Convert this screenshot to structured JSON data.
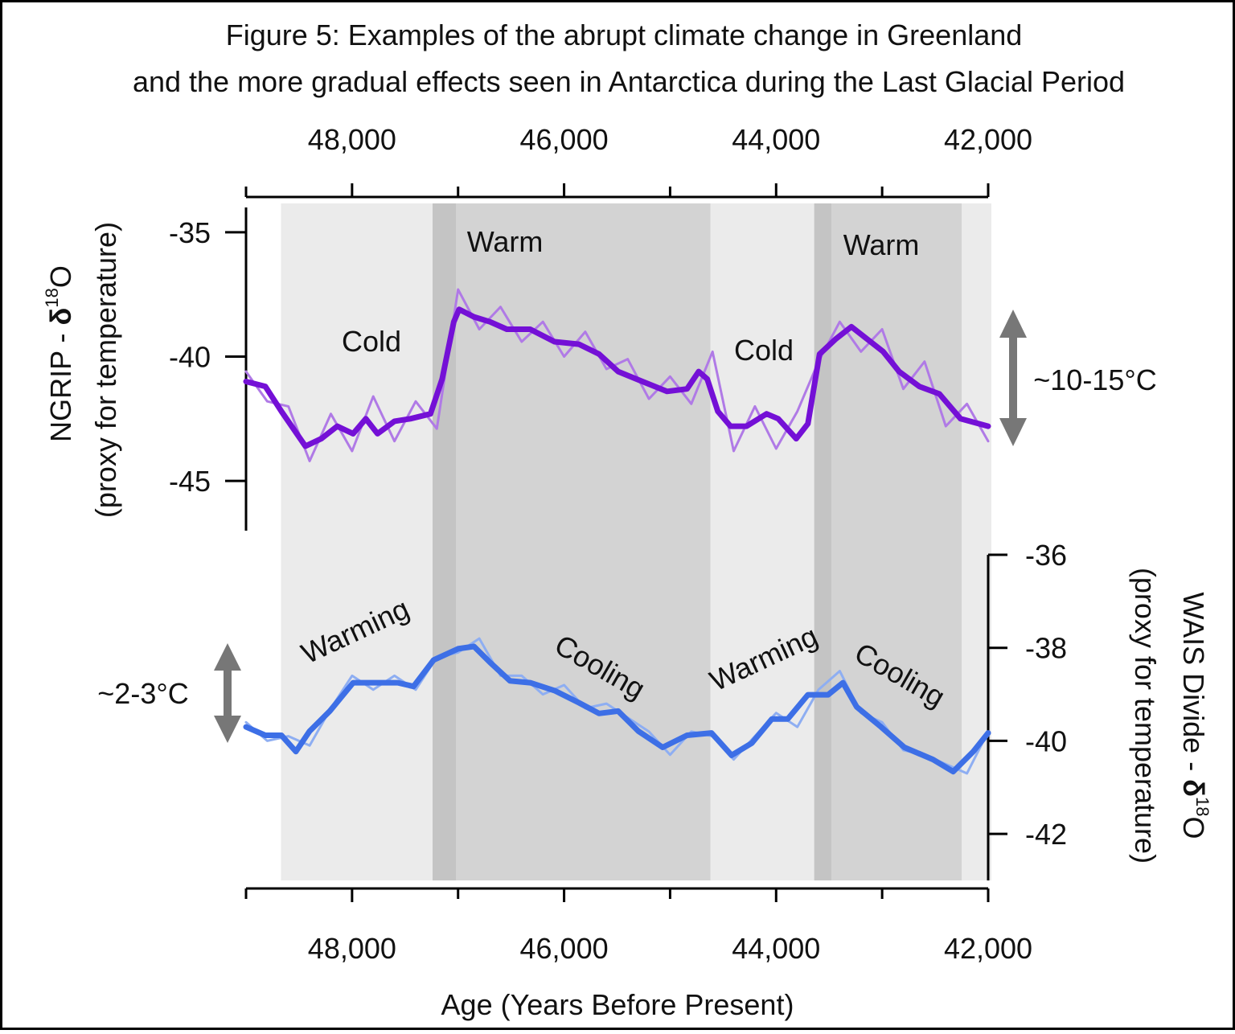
{
  "chart_data": {
    "type": "line",
    "title": [
      "Figure 5: Examples of the abrupt climate change in Greenland",
      "and the more gradual effects seen in Antarctica during the Last Glacial Period"
    ],
    "x_label": "Age (Years Before Present)",
    "xlim": [
      49000,
      42000
    ],
    "xticks": [
      {
        "value": 48000,
        "label": "48,000"
      },
      {
        "value": 46000,
        "label": "46,000"
      },
      {
        "value": 44000,
        "label": "44,000"
      },
      {
        "value": 42000,
        "label": "42,000"
      }
    ],
    "xticks_minor": [
      49000,
      47000,
      45000,
      43000
    ],
    "y_label": {
      "parts": [
        "NGRIP - ",
        "δ",
        "18",
        "O"
      ],
      "note": "(proxy for temperature)"
    },
    "ylim": [
      -47,
      -34
    ],
    "yticks": [
      -45,
      -40,
      -35
    ],
    "y2_label": {
      "parts": [
        "WAIS Divide - ",
        "δ",
        "18",
        "O"
      ],
      "note": "(proxy for temperature)"
    },
    "y2lim": [
      -43,
      -36
    ],
    "y2ticks": [
      -42,
      -40,
      -38,
      -36
    ],
    "shading": [
      {
        "start": 48670,
        "end": 41970,
        "color": "#ebebeb"
      },
      {
        "start": 47240,
        "end": 44620,
        "color": "#d3d3d3"
      },
      {
        "start": 47240,
        "end": 47020,
        "color": "#c4c4c4"
      },
      {
        "start": 43640,
        "end": 42250,
        "color": "#d3d3d3"
      },
      {
        "start": 43640,
        "end": 43480,
        "color": "#c4c4c4"
      }
    ],
    "series": [
      {
        "color": "#b07ae6",
        "width": 3,
        "x": [
          49000,
          48800,
          48600,
          48400,
          48200,
          48000,
          47800,
          47600,
          47400,
          47200,
          47000,
          46800,
          46600,
          46400,
          46200,
          46000,
          45800,
          45600,
          45400,
          45200,
          45000,
          44800,
          44600,
          44400,
          44200,
          44000,
          43800,
          43600,
          43400,
          43200,
          43000,
          42800,
          42600,
          42400,
          42200,
          42000
        ],
        "values": [
          -40.6,
          -41.8,
          -42.0,
          -44.2,
          -42.3,
          -43.8,
          -41.6,
          -43.4,
          -41.8,
          -42.9,
          -37.3,
          -38.9,
          -38.0,
          -39.4,
          -38.6,
          -40.0,
          -39.0,
          -40.5,
          -40.1,
          -41.7,
          -40.8,
          -41.9,
          -39.8,
          -43.8,
          -42.0,
          -43.7,
          -42.2,
          -40.2,
          -38.6,
          -39.8,
          -38.9,
          -41.3,
          -40.2,
          -42.8,
          -41.9,
          -43.4
        ]
      },
      {
        "color": "#7410d6",
        "width": 7,
        "x": [
          49000,
          48818,
          48666,
          48440,
          48290,
          48140,
          47990,
          47870,
          47760,
          47600,
          47450,
          47260,
          47150,
          47040,
          46990,
          46850,
          46700,
          46540,
          46320,
          46090,
          45860,
          45670,
          45490,
          45260,
          45030,
          44840,
          44730,
          44650,
          44550,
          44430,
          44280,
          44090,
          43980,
          43810,
          43700,
          43590,
          43440,
          43290,
          43140,
          42990,
          42840,
          42650,
          42460,
          42260,
          42000
        ],
        "values": [
          -41.0,
          -41.2,
          -42.2,
          -43.6,
          -43.3,
          -42.8,
          -43.1,
          -42.5,
          -43.1,
          -42.6,
          -42.5,
          -42.3,
          -40.9,
          -38.6,
          -38.1,
          -38.4,
          -38.6,
          -38.9,
          -38.9,
          -39.4,
          -39.5,
          -39.9,
          -40.6,
          -41.0,
          -41.4,
          -41.3,
          -40.6,
          -40.9,
          -42.2,
          -42.8,
          -42.8,
          -42.3,
          -42.5,
          -43.3,
          -42.7,
          -39.9,
          -39.3,
          -38.8,
          -39.3,
          -39.8,
          -40.6,
          -41.2,
          -41.5,
          -42.5,
          -42.8
        ]
      },
      {
        "color": "#8eaef2",
        "width": 3,
        "axis": "y2",
        "x": [
          49000,
          48800,
          48600,
          48400,
          48200,
          48000,
          47800,
          47600,
          47400,
          47200,
          47000,
          46800,
          46600,
          46400,
          46200,
          46000,
          45800,
          45600,
          45400,
          45200,
          45000,
          44800,
          44600,
          44400,
          44200,
          44000,
          43800,
          43600,
          43400,
          43200,
          43000,
          42800,
          42600,
          42400,
          42200,
          42000
        ],
        "values": [
          -39.6,
          -40.0,
          -39.9,
          -40.1,
          -39.3,
          -38.6,
          -38.9,
          -38.6,
          -38.9,
          -38.2,
          -38.1,
          -37.8,
          -38.6,
          -38.6,
          -39.0,
          -38.8,
          -39.3,
          -39.2,
          -39.5,
          -39.8,
          -40.3,
          -39.8,
          -39.9,
          -40.4,
          -39.9,
          -39.4,
          -39.7,
          -38.9,
          -38.5,
          -39.4,
          -39.6,
          -40.2,
          -40.3,
          -40.5,
          -40.7,
          -39.8
        ]
      },
      {
        "color": "#3d6fe6",
        "width": 7,
        "axis": "y2",
        "x": [
          49000,
          48818,
          48666,
          48530,
          48400,
          48210,
          47990,
          47760,
          47570,
          47420,
          47230,
          47000,
          46850,
          46700,
          46510,
          46320,
          46090,
          45860,
          45670,
          45490,
          45300,
          45070,
          44840,
          44610,
          44420,
          44230,
          44040,
          43890,
          43700,
          43510,
          43370,
          43240,
          43010,
          42790,
          42520,
          42330,
          42140,
          42000
        ],
        "values": [
          -39.7,
          -39.88,
          -39.88,
          -40.23,
          -39.79,
          -39.36,
          -38.75,
          -38.75,
          -38.75,
          -38.83,
          -38.26,
          -38.02,
          -37.97,
          -38.31,
          -38.71,
          -38.75,
          -38.92,
          -39.18,
          -39.41,
          -39.36,
          -39.79,
          -40.14,
          -39.88,
          -39.83,
          -40.31,
          -40.05,
          -39.53,
          -39.53,
          -39.01,
          -39.01,
          -38.75,
          -39.27,
          -39.7,
          -40.14,
          -40.4,
          -40.66,
          -40.23,
          -39.83
        ]
      }
    ],
    "annotations": [
      {
        "text": "Warm",
        "color": "#f04848"
      },
      {
        "text": "Warm",
        "color": "#f04848"
      },
      {
        "text": "Cold",
        "color": "#1f55dc"
      },
      {
        "text": "Cold",
        "color": "#1f55dc"
      },
      {
        "text": "Warming",
        "color": "#f04848"
      },
      {
        "text": "Cooling",
        "color": "#1f55dc"
      },
      {
        "text": "Warming",
        "color": "#f04848"
      },
      {
        "text": "Cooling",
        "color": "#1f55dc"
      },
      {
        "text": "~10-15°C",
        "color": "#111111"
      },
      {
        "text": "~2-3°C",
        "color": "#111111"
      }
    ]
  }
}
